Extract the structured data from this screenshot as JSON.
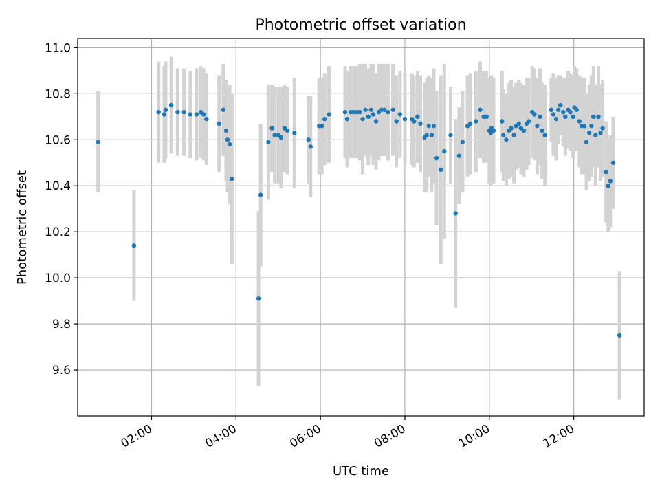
{
  "chart_data": {
    "type": "scatter",
    "title": "Photometric offset variation",
    "xlabel": "UTC time",
    "ylabel": "Photometric offset",
    "x_ticks": [
      "02:00",
      "04:00",
      "06:00",
      "08:00",
      "10:00",
      "12:00"
    ],
    "y_ticks": [
      "9.6",
      "9.8",
      "10.0",
      "10.2",
      "10.4",
      "10.6",
      "10.8",
      "11.0"
    ],
    "x_range": [
      "00:15",
      "13:40"
    ],
    "ylim": [
      9.4,
      11.04
    ],
    "grid": true,
    "colors": {
      "point": "#1f77b4",
      "errorbar": "#d3d3d3"
    },
    "series": [
      {
        "x": [
          "00:44",
          "01:35",
          "02:10",
          "02:18",
          "02:20",
          "02:28",
          "02:37",
          "02:46",
          "02:55",
          "03:04",
          "03:10",
          "03:14",
          "03:18",
          "03:36",
          "03:42",
          "03:46",
          "03:48",
          "03:51",
          "03:54",
          "04:32",
          "04:35",
          "04:46",
          "04:51",
          "04:55",
          "05:00",
          "05:04",
          "05:09",
          "05:13",
          "05:23",
          "05:43",
          "05:46",
          "05:58",
          "06:02",
          "06:06",
          "06:12",
          "06:35",
          "06:38",
          "06:43",
          "06:47",
          "06:52",
          "06:56",
          "07:00",
          "07:04",
          "07:08",
          "07:12",
          "07:15",
          "07:19",
          "07:23",
          "07:27",
          "07:31",
          "07:36",
          "07:43",
          "07:48",
          "07:53",
          "08:00",
          "08:10",
          "08:13",
          "08:18",
          "08:22",
          "08:28",
          "08:31",
          "08:34",
          "08:38",
          "08:41",
          "08:45",
          "08:51",
          "08:56",
          "09:05",
          "09:12",
          "09:17",
          "09:22",
          "09:29",
          "09:33",
          "09:41",
          "09:47",
          "09:52",
          "09:56",
          "10:00",
          "10:02",
          "10:03",
          "10:06",
          "10:18",
          "10:20",
          "10:24",
          "10:28",
          "10:31",
          "10:35",
          "10:38",
          "10:42",
          "10:45",
          "10:49",
          "10:53",
          "10:56",
          "11:01",
          "11:04",
          "11:08",
          "11:12",
          "11:15",
          "11:19",
          "11:28",
          "11:31",
          "11:35",
          "11:38",
          "11:41",
          "11:45",
          "11:48",
          "11:52",
          "11:55",
          "11:59",
          "12:01",
          "12:04",
          "12:08",
          "12:11",
          "12:15",
          "12:18",
          "12:22",
          "12:25",
          "12:28",
          "12:31",
          "12:35",
          "12:38",
          "12:41",
          "12:46",
          "12:49",
          "12:52",
          "12:56",
          "13:05"
        ],
        "y": [
          10.59,
          10.14,
          10.72,
          10.71,
          10.73,
          10.75,
          10.72,
          10.72,
          10.71,
          10.71,
          10.72,
          10.71,
          10.69,
          10.67,
          10.73,
          10.64,
          10.6,
          10.58,
          10.43,
          9.91,
          10.36,
          10.59,
          10.65,
          10.62,
          10.62,
          10.61,
          10.65,
          10.64,
          10.63,
          10.6,
          10.57,
          10.66,
          10.66,
          10.69,
          10.71,
          10.72,
          10.69,
          10.72,
          10.72,
          10.72,
          10.72,
          10.69,
          10.73,
          10.7,
          10.73,
          10.71,
          10.68,
          10.72,
          10.73,
          10.73,
          10.72,
          10.73,
          10.68,
          10.71,
          10.69,
          10.69,
          10.68,
          10.7,
          10.67,
          10.61,
          10.62,
          10.66,
          10.62,
          10.66,
          10.52,
          10.47,
          10.55,
          10.62,
          10.28,
          10.53,
          10.59,
          10.66,
          10.67,
          10.68,
          10.73,
          10.7,
          10.7,
          10.64,
          10.63,
          10.65,
          10.64,
          10.68,
          10.62,
          10.6,
          10.64,
          10.65,
          10.62,
          10.66,
          10.67,
          10.65,
          10.64,
          10.67,
          10.68,
          10.72,
          10.71,
          10.66,
          10.7,
          10.64,
          10.62,
          10.73,
          10.71,
          10.69,
          10.73,
          10.75,
          10.72,
          10.7,
          10.73,
          10.72,
          10.7,
          10.74,
          10.73,
          10.68,
          10.66,
          10.66,
          10.59,
          10.63,
          10.66,
          10.7,
          10.62,
          10.7,
          10.63,
          10.65,
          10.46,
          10.4,
          10.42,
          10.5,
          9.75
        ],
        "yerr": [
          0.22,
          0.24,
          0.22,
          0.21,
          0.21,
          0.21,
          0.19,
          0.19,
          0.19,
          0.2,
          0.2,
          0.2,
          0.2,
          0.21,
          0.2,
          0.22,
          0.23,
          0.26,
          0.37,
          0.38,
          0.31,
          0.25,
          0.19,
          0.21,
          0.21,
          0.22,
          0.19,
          0.19,
          0.24,
          0.19,
          0.22,
          0.21,
          0.21,
          0.2,
          0.21,
          0.2,
          0.21,
          0.2,
          0.2,
          0.2,
          0.21,
          0.24,
          0.2,
          0.21,
          0.2,
          0.22,
          0.21,
          0.21,
          0.2,
          0.2,
          0.21,
          0.2,
          0.2,
          0.19,
          0.2,
          0.2,
          0.2,
          0.2,
          0.21,
          0.24,
          0.25,
          0.22,
          0.25,
          0.25,
          0.29,
          0.41,
          0.38,
          0.21,
          0.41,
          0.21,
          0.22,
          0.22,
          0.22,
          0.22,
          0.21,
          0.2,
          0.2,
          0.23,
          0.23,
          0.23,
          0.23,
          0.22,
          0.2,
          0.2,
          0.21,
          0.21,
          0.21,
          0.19,
          0.19,
          0.2,
          0.2,
          0.2,
          0.19,
          0.2,
          0.2,
          0.21,
          0.21,
          0.21,
          0.22,
          0.14,
          0.18,
          0.18,
          0.15,
          0.13,
          0.15,
          0.17,
          0.17,
          0.17,
          0.18,
          0.18,
          0.18,
          0.2,
          0.21,
          0.21,
          0.21,
          0.21,
          0.22,
          0.22,
          0.22,
          0.22,
          0.21,
          0.21,
          0.22,
          0.2,
          0.2,
          0.2,
          0.28
        ]
      }
    ]
  }
}
